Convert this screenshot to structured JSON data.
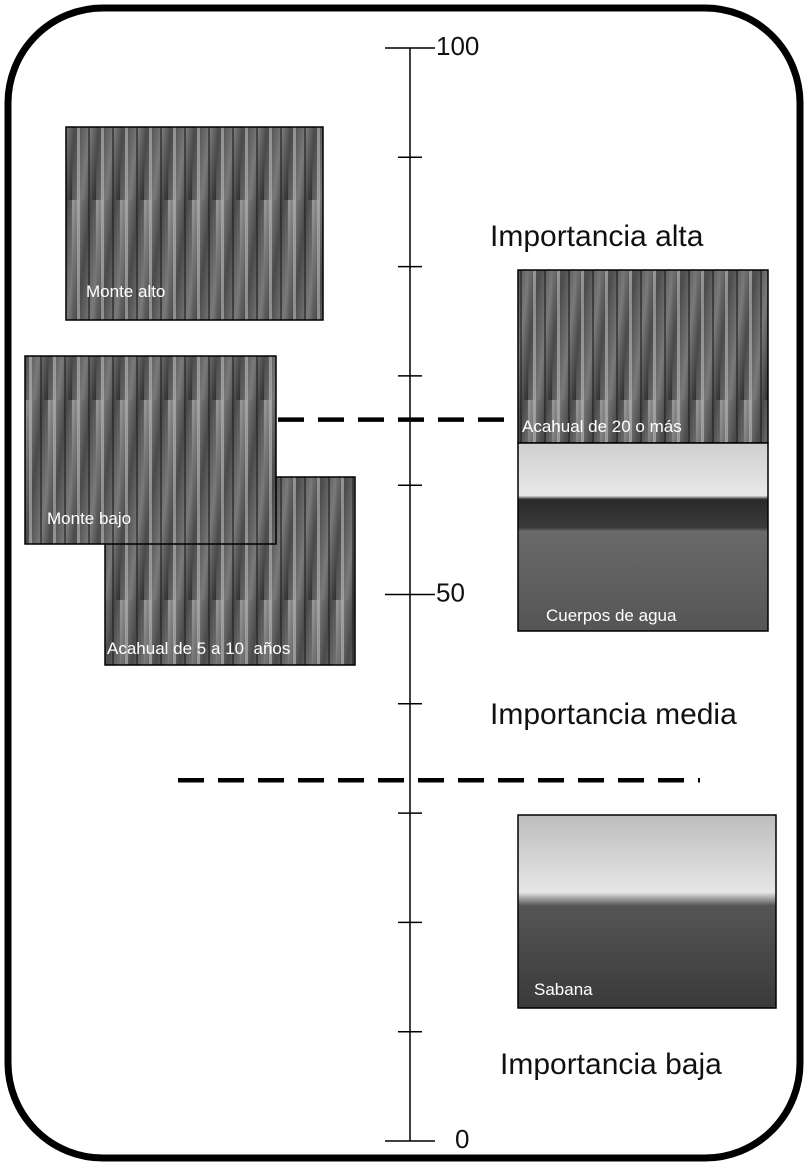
{
  "scale": {
    "ylim": [
      0,
      100
    ],
    "yticks": [
      0,
      10,
      20,
      30,
      40,
      50,
      60,
      70,
      80,
      90,
      100
    ],
    "labels": [
      100,
      50,
      0
    ]
  },
  "dividers": [
    66,
    33
  ],
  "zones": [
    "Importancia alta",
    "Importancia media",
    "Importancia baja"
  ],
  "photos": [
    "Monte alto",
    "Acahual de 20 o más",
    "Cuerpos de agua",
    "Acahual de 5 a 10  años",
    "Monte bajo",
    "Sabana"
  ]
}
